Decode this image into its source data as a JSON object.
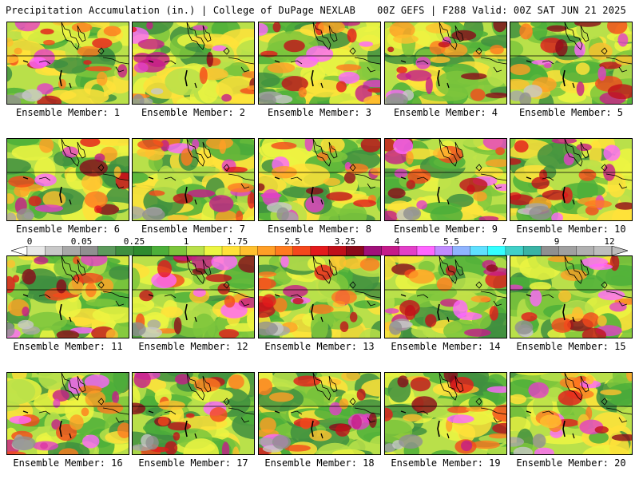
{
  "header": {
    "left_title": "Precipitation Accumulation (in.) | College of DuPage NEXLAB",
    "right_title": "00Z GEFS | F288 Valid: 00Z SAT JUN 21 2025"
  },
  "colorbar": {
    "tick_labels": [
      "0",
      "0.05",
      "0.25",
      "1",
      "1.75",
      "2.5",
      "3.25",
      "4",
      "5.5",
      "7",
      "9",
      "12"
    ],
    "colors": [
      "#e8e8e8",
      "#c8c8c8",
      "#a8a8a8",
      "#909090",
      "#5c9a5c",
      "#3f8f3f",
      "#2e8b2e",
      "#4caf3a",
      "#7cc63c",
      "#b9e04a",
      "#ecf542",
      "#ffe23a",
      "#ffc12e",
      "#ff9f26",
      "#ff7b1f",
      "#f4481c",
      "#e31a1c",
      "#c0101a",
      "#8b0a1a",
      "#a0107a",
      "#c51b8a",
      "#e33fc8",
      "#ff66ff",
      "#c08bff",
      "#8fb4ff",
      "#5fe0ff",
      "#33ffff",
      "#40d0c8",
      "#3ab3a5",
      "#909090",
      "#a0a0a0",
      "#b0b0b0",
      "#bdbdbd"
    ]
  },
  "panels": [
    {
      "label": "Ensemble Member: 1"
    },
    {
      "label": "Ensemble Member: 2"
    },
    {
      "label": "Ensemble Member: 3"
    },
    {
      "label": "Ensemble Member: 4"
    },
    {
      "label": "Ensemble Member: 5"
    },
    {
      "label": "Ensemble Member: 6"
    },
    {
      "label": "Ensemble Member: 7"
    },
    {
      "label": "Ensemble Member: 8"
    },
    {
      "label": "Ensemble Member: 9"
    },
    {
      "label": "Ensemble Member: 10"
    },
    {
      "label": "Ensemble Member: 11"
    },
    {
      "label": "Ensemble Member: 12"
    },
    {
      "label": "Ensemble Member: 13"
    },
    {
      "label": "Ensemble Member: 14"
    },
    {
      "label": "Ensemble Member: 15"
    },
    {
      "label": "Ensemble Member: 16"
    },
    {
      "label": "Ensemble Member: 17"
    },
    {
      "label": "Ensemble Member: 18"
    },
    {
      "label": "Ensemble Member: 19"
    },
    {
      "label": "Ensemble Member: 20"
    }
  ]
}
